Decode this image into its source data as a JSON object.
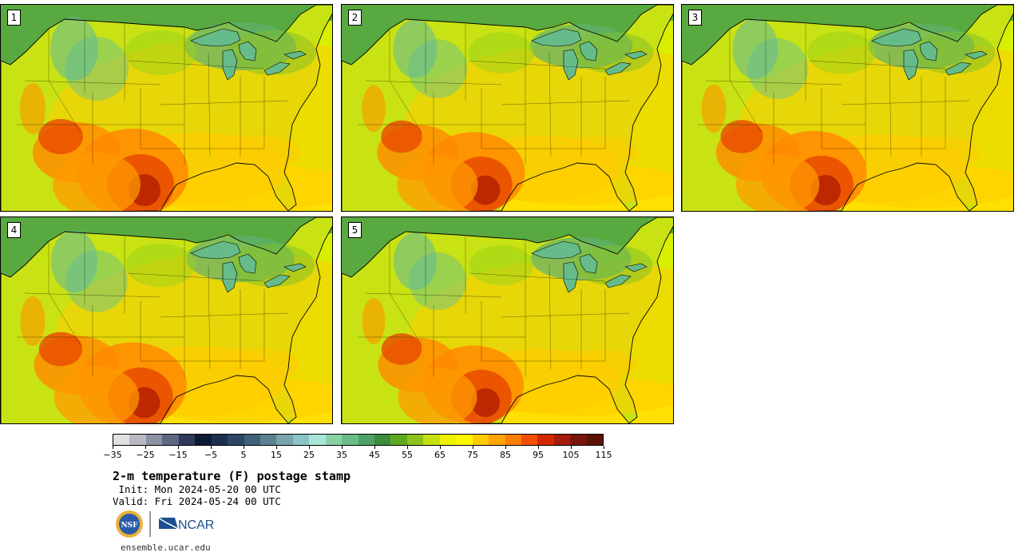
{
  "panels": [
    {
      "label": "1",
      "heat": 1.0
    },
    {
      "label": "2",
      "heat": 0.92
    },
    {
      "label": "3",
      "heat": 0.95
    },
    {
      "label": "4",
      "heat": 0.97
    },
    {
      "label": "5",
      "heat": 0.9
    }
  ],
  "colorbar": {
    "colors": [
      "#e0e0e0",
      "#b8b9c2",
      "#8c92a3",
      "#5e6781",
      "#2d3a5a",
      "#0d1a33",
      "#1e2d50",
      "#2c4566",
      "#3f6079",
      "#5a8190",
      "#77a5ab",
      "#8cc3c3",
      "#a8e6d8",
      "#86d2a4",
      "#6abc86",
      "#4ea266",
      "#3c8c3a",
      "#5fa822",
      "#8cc21a",
      "#c5e010",
      "#eef300",
      "#fff700",
      "#ffcc00",
      "#ffa400",
      "#ff7e00",
      "#f05000",
      "#d32800",
      "#a51c0c",
      "#7a150c",
      "#5a1206"
    ],
    "tick_values": [
      "-35",
      "-25",
      "-15",
      "-5",
      "5",
      "15",
      "25",
      "35",
      "45",
      "55",
      "65",
      "75",
      "85",
      "95",
      "105",
      "115"
    ]
  },
  "title": "2-m temperature (F) postage stamp",
  "init": " Init: Mon 2024-05-20 00 UTC",
  "valid": "Valid: Fri 2024-05-24 00 UTC",
  "logos": {
    "nsf": "NSF",
    "ncar": "NCAR"
  },
  "url": "ensemble.ucar.edu"
}
